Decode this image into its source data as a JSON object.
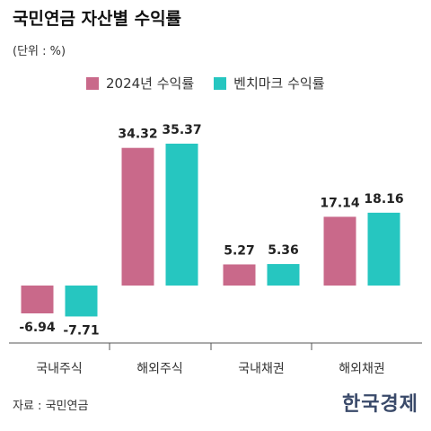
{
  "title": "국민연금 자산별 수익률",
  "unit": "(단위 : %)",
  "source": "자료 : 국민연금",
  "brand": "한국경제",
  "colors": {
    "series1": "#c9698a",
    "series2": "#26c6c0",
    "baseline": "#555555",
    "divider": "#dddddd"
  },
  "chart_data": {
    "type": "bar",
    "title": "국민연금 자산별 수익률",
    "ylabel": "(단위 : %)",
    "legend_position": "top",
    "grid": false,
    "categories": [
      "국내주식",
      "해외주식",
      "국내채권",
      "해외채권"
    ],
    "series": [
      {
        "name": "2024년 수익률",
        "values": [
          -6.94,
          34.32,
          5.27,
          17.14
        ]
      },
      {
        "name": "벤치마크 수익률",
        "values": [
          -7.71,
          35.37,
          5.36,
          18.16
        ]
      }
    ],
    "data_labels": [
      [
        "-6.94",
        "34.32",
        "5.27",
        "17.14"
      ],
      [
        "-7.71",
        "35.37",
        "5.36",
        "18.16"
      ]
    ],
    "ylim": [
      -10,
      35.37
    ]
  }
}
